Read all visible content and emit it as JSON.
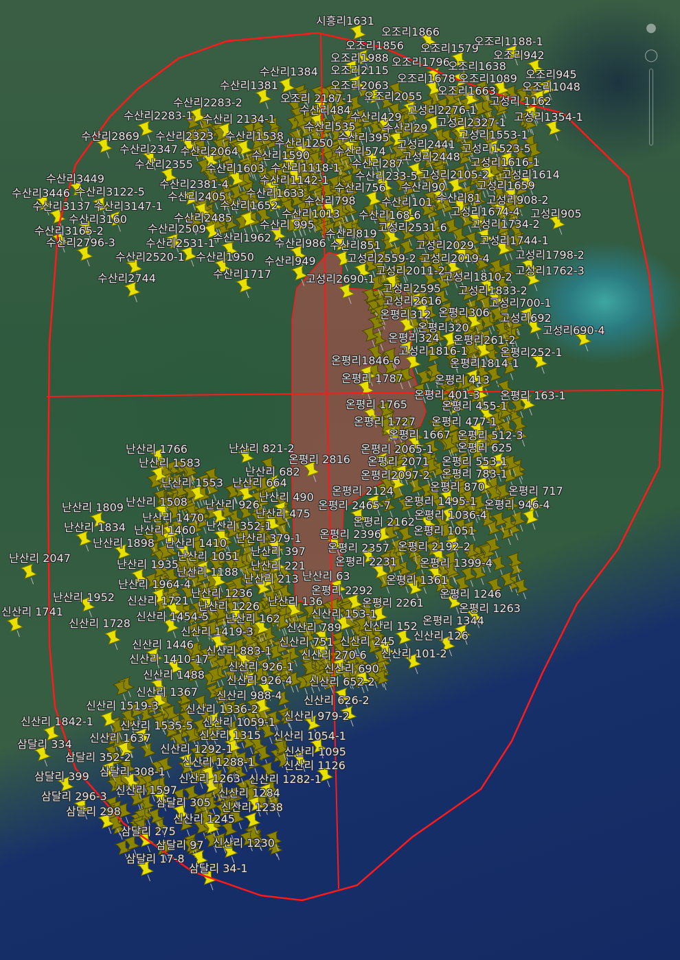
{
  "map": {
    "view": "satellite",
    "colors": {
      "boundary": "#ff1a1a",
      "highlight_area": "#c0504d",
      "pin": "#e8e000"
    },
    "pin_icon": "pushpin-icon",
    "controls": [
      "pegman-icon",
      "compass-icon",
      "zoom-slider"
    ],
    "labels": [
      "시흥리1631",
      "오조리1866",
      "오조리1856",
      "오조리1579",
      "오조리1188-1",
      "오조리942",
      "오조리1988",
      "오조리1796",
      "오조리1638",
      "오조리945",
      "오조리2115",
      "오조리1678",
      "오조리1089",
      "오조리1048",
      "수산리1384",
      "수산리1381",
      "오조리2063",
      "오조리 2187-1",
      "오조리2055",
      "오조리1663",
      "고성리 1162",
      "수산리2283-2",
      "수산리484",
      "수산리429",
      "고성리2276-1",
      "고성리1354-1",
      "수산리2283-1",
      "수산리 2134-1",
      "수산리535",
      "수산리29",
      "고성리2327-1",
      "고성리1553-1",
      "수산리2869",
      "수산리2323",
      "수산리1538",
      "수산리395",
      "수산리1250",
      "고성리2441",
      "고성리1523-5",
      "수산리2347",
      "수산리2064",
      "수산리1590",
      "수산리574",
      "고성리2448",
      "고성리1616-1",
      "수산리2355",
      "수산리1603",
      "수산리1118-1",
      "수산리287",
      "수산리233-5",
      "고성리2105-2",
      "고성리1614",
      "수산리3449",
      "수산리1142-1",
      "수산리2381-4",
      "수산리756",
      "수산리90",
      "고성리1659",
      "수산리3446",
      "수산리3122-5",
      "수산리1633",
      "수산리2405",
      "수산리798",
      "수산리101",
      "수산리81",
      "고성리908-2",
      "수산리3137",
      "수산리3147-1",
      "수산리1652",
      "고성리1674-4",
      "고성리905",
      "수산리3160",
      "수산리2485",
      "수산리1013",
      "수산리168-6",
      "수산리 995",
      "고성리1734-2",
      "수산리3165-2",
      "수산리2509",
      "고성리2531-6",
      "수산리819",
      "수산리1962",
      "고성리1744-1",
      "수산리2796-3",
      "수산리2531-1",
      "수산리986",
      "수산리851",
      "고성리2029",
      "수산리2520-1",
      "수산리1950",
      "고성리2559-2",
      "고성리2019-4",
      "고성리1798-2",
      "수산리949",
      "고성리2011-2",
      "고성리1762-3",
      "수산리2744",
      "수산리1717",
      "고성리2690-1",
      "고성리1810-2",
      "고성리2595",
      "고성리1833-2",
      "고성리2616",
      "고성리700-1",
      "온평리312",
      "온평리306",
      "고성리692",
      "온평리320",
      "고성리690-4",
      "온평리324",
      "온평리261-2",
      "고성리1816-1",
      "온평리252-1",
      "온평리1846-6",
      "온평리1814-1",
      "온평리 1787",
      "온평리 413",
      "온평리 401-3",
      "온평리 163-1",
      "온평리 1765",
      "온평리 455-1",
      "온평리 1727",
      "온평리 477-1",
      "온평리 1667",
      "온평리 512-3",
      "온평리 2065-1",
      "온평리 625",
      "온평리 2816",
      "온평리 2071",
      "온평리 553-1",
      "온평리2097-2",
      "온평리 783-1",
      "온평리 2124",
      "온평리 870",
      "온평리 717",
      "온평리 2465-7",
      "온평리 1495-1",
      "온평리 946-4",
      "온평리 1036-4",
      "온평리 2162",
      "온평리 1051",
      "온평리 2396",
      "온평리 2357",
      "온평리 2192-2",
      "온평리 2231",
      "온평리 1399-4",
      "난산리 63",
      "온평리 1361",
      "온평리 2292",
      "온평리 1246",
      "온평리 2261",
      "온평리 1263",
      "신산리 153-1",
      "온평리 1344",
      "신산리 789",
      "신산리 152",
      "신산리 126",
      "신산리 751",
      "신산리 245",
      "신산리 270-6",
      "신산리 101-2",
      "신산리 690",
      "신산리 652-2",
      "신산리 626-2",
      "신산리 979-2",
      "신산리 1054-1",
      "신산리 1095",
      "신산리 1126",
      "신산리 1282-1",
      "신산리 1284",
      "신산리 1238",
      "신산리 1245",
      "신산리 1230",
      "삼달리 34-1",
      "삼달리 17-8",
      "삼달리 97",
      "삼달리 275",
      "삼달리 305",
      "삼달리 298",
      "삼달리 296-3",
      "신산리 1597",
      "신산리 1263",
      "삼달리 399",
      "삼달리 308-1",
      "신산리 1288-1",
      "삼달리 352-2",
      "신산리 1292-1",
      "삼달리 334",
      "신산리 1637",
      "신산리 1315",
      "신산리 1535-5",
      "신산리 1059-1",
      "신산리 1842-1",
      "신산리 1336-2",
      "신산리 1519-3",
      "신산리 1367",
      "신산리 988-4",
      "신산리 1488",
      "신산리 926-4",
      "신산리 926-1",
      "신산리 1410-17",
      "신산리 883-1",
      "신산리 1446",
      "신산리 1419-3",
      "신산리 1454-5",
      "난산리 162",
      "신산리 1728",
      "신산리 1741",
      "난산리 1952",
      "신산리 1721",
      "난산리 1226",
      "난산리 136",
      "난산리 1236",
      "난산리 1964-4",
      "난산리 213",
      "난산리 1188",
      "난산리 221",
      "난산리 1935",
      "난산리 1051",
      "난산리 2047",
      "난산리 397",
      "난산리 1898",
      "난산리 1410",
      "난산리 379-1",
      "난산리 1834",
      "난산리 1460",
      "난산리 352-1",
      "난산리 475",
      "난산리 1809",
      "난산리 1470",
      "난산리 1508",
      "난산리 926",
      "난산리 490",
      "난산리 1553",
      "난산리 664",
      "난산리 682",
      "난산리 1583",
      "난산리 1766",
      "난산리 821-2"
    ]
  }
}
